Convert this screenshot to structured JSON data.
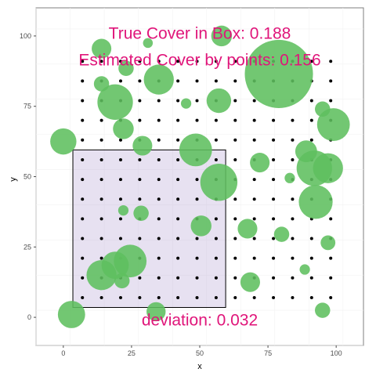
{
  "chart_data": {
    "type": "scatter",
    "xlabel": "x",
    "ylabel": "y",
    "xlim": [
      -10,
      110
    ],
    "ylim": [
      -10,
      110
    ],
    "x_ticks": [
      0,
      25,
      50,
      75,
      100
    ],
    "y_ticks": [
      0,
      25,
      50,
      75,
      100
    ],
    "x_tick_labels": [
      "0",
      "25",
      "50",
      "75",
      "100"
    ],
    "y_tick_labels": [
      "0",
      "25",
      "50",
      "75",
      "100"
    ],
    "grid": true,
    "legend": "none",
    "colors": {
      "circles": "#5fbf5f",
      "box_fill": "#b9a8d6",
      "box_stroke": "#000000",
      "points": "#000000",
      "annotation": "#e0157a",
      "panel_bg": "#ffffff",
      "grid": "#ebebeb"
    },
    "annotations": [
      {
        "text": "True Cover in Box: 0.188",
        "x": 50,
        "y": 101
      },
      {
        "text": "Estimated Cover by points: 0.156",
        "x": 50,
        "y": 91.5
      },
      {
        "text": "deviation: 0.032",
        "x": 50,
        "y": -1
      }
    ],
    "box": {
      "x_min": 3.5,
      "x_max": 59.5,
      "y_min": 3.5,
      "y_max": 59.5
    },
    "sample_grid": {
      "x_start": 7,
      "x_end": 98,
      "y_start": 7,
      "y_end": 91,
      "step": 7
    },
    "circles": [
      {
        "x": 79,
        "y": 86.5,
        "r": 12.5
      },
      {
        "x": 19,
        "y": 76.5,
        "r": 6.5
      },
      {
        "x": 35,
        "y": 84.5,
        "r": 5.5
      },
      {
        "x": 57,
        "y": 77,
        "r": 4.5
      },
      {
        "x": 57,
        "y": 48,
        "r": 6.8
      },
      {
        "x": 48.5,
        "y": 59.5,
        "r": 6.0
      },
      {
        "x": 92,
        "y": 53,
        "r": 6.5
      },
      {
        "x": 97,
        "y": 53,
        "r": 5.5
      },
      {
        "x": 92.5,
        "y": 41,
        "r": 6.2
      },
      {
        "x": 89,
        "y": 59,
        "r": 4.0
      },
      {
        "x": 99,
        "y": 68.5,
        "r": 6.0
      },
      {
        "x": 95,
        "y": 74,
        "r": 2.8
      },
      {
        "x": 0,
        "y": 62.5,
        "r": 4.8
      },
      {
        "x": 14,
        "y": 95.5,
        "r": 3.6
      },
      {
        "x": 31,
        "y": 97.5,
        "r": 1.8
      },
      {
        "x": 58,
        "y": 100,
        "r": 3.8
      },
      {
        "x": 23,
        "y": 88.5,
        "r": 2.8
      },
      {
        "x": 14,
        "y": 83,
        "r": 2.8
      },
      {
        "x": 22,
        "y": 67,
        "r": 3.8
      },
      {
        "x": 29,
        "y": 61,
        "r": 3.6
      },
      {
        "x": 45,
        "y": 76,
        "r": 1.9
      },
      {
        "x": 72,
        "y": 55,
        "r": 3.6
      },
      {
        "x": 50.5,
        "y": 32.5,
        "r": 3.8
      },
      {
        "x": 67.5,
        "y": 31.5,
        "r": 3.6
      },
      {
        "x": 80,
        "y": 29.5,
        "r": 2.8
      },
      {
        "x": 97,
        "y": 26.5,
        "r": 2.7
      },
      {
        "x": 22,
        "y": 38,
        "r": 1.9
      },
      {
        "x": 28.5,
        "y": 37,
        "r": 2.8
      },
      {
        "x": 24.5,
        "y": 20,
        "r": 6.0
      },
      {
        "x": 19,
        "y": 18.5,
        "r": 5.0
      },
      {
        "x": 14,
        "y": 15,
        "r": 5.5
      },
      {
        "x": 21.5,
        "y": 13,
        "r": 2.8
      },
      {
        "x": 68.5,
        "y": 12.5,
        "r": 3.6
      },
      {
        "x": 88.5,
        "y": 17,
        "r": 1.9
      },
      {
        "x": 3,
        "y": 1,
        "r": 5.0
      },
      {
        "x": 34,
        "y": 2,
        "r": 3.5
      },
      {
        "x": 95,
        "y": 2.5,
        "r": 2.8
      },
      {
        "x": 83,
        "y": 49.5,
        "r": 1.9
      }
    ]
  }
}
